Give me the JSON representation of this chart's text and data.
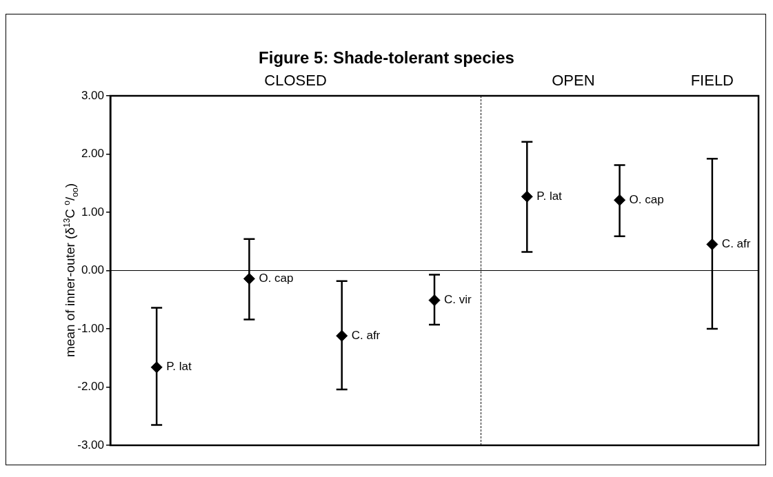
{
  "chart_data": {
    "type": "scatter",
    "title": "Figure 5: Shade-tolerant species",
    "ylabel": "mean of inner-outer (δ$^{13}$C $^{o}$/$_{oo}$)",
    "categories": [
      null,
      null,
      null,
      null,
      null,
      null,
      null
    ],
    "values": [
      -1.66,
      -0.14,
      -1.12,
      -0.51,
      1.27,
      1.21,
      0.45
    ],
    "errors": [
      [
        -2.65,
        -0.64
      ],
      [
        -0.84,
        0.54
      ],
      [
        -2.04,
        -0.18
      ],
      [
        -0.93,
        -0.07
      ],
      [
        0.32,
        2.21
      ],
      [
        0.59,
        1.81
      ],
      [
        -1.0,
        1.92
      ]
    ],
    "value_labels": [
      "P. lat",
      "O. cap",
      "C. afr",
      "C. vir",
      "P. lat",
      "O. cap",
      "C. afr"
    ],
    "color": "#000000",
    "marker": "diamond",
    "ylim": [
      -3,
      3
    ],
    "yticks": [
      {
        "value": -3,
        "label": "-3.00"
      },
      {
        "value": -2,
        "label": "-2.00"
      },
      {
        "value": -1,
        "label": "-1.00"
      },
      {
        "value": 0,
        "label": "0.00"
      },
      {
        "value": 1,
        "label": "1.00"
      },
      {
        "value": 2,
        "label": "2.00"
      },
      {
        "value": 3,
        "label": "3.00"
      }
    ],
    "tick_labels": "y",
    "ref_lines": [
      {
        "axis": "y",
        "value": 0,
        "color": "#000000",
        "line_style": "solid"
      }
    ],
    "annotations": [
      "CLOSED",
      "OPEN",
      "FIELD"
    ]
  }
}
